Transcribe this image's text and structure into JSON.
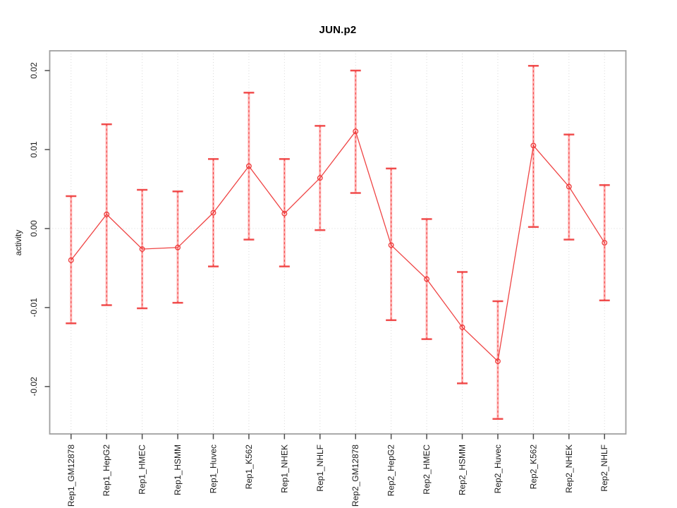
{
  "title": "JUN.p2",
  "chart_data": {
    "type": "line",
    "title": "JUN.p2",
    "subtitle": "",
    "xlabel": "",
    "ylabel": "activity",
    "legend_position": "none",
    "ylim": [
      -0.026,
      0.0225
    ],
    "ytick_values": [
      0.02,
      0.01,
      0.0,
      -0.01,
      -0.02
    ],
    "ytick_labels": [
      "0.02",
      "0.01",
      "0.00",
      "-0.01",
      "-0.02"
    ],
    "grid": {
      "vertical_dotted_per_category": true,
      "horizontal_dotted_at_zero": true
    },
    "marker": "open-circle",
    "error_bars": true,
    "categories": [
      "Rep1_GM12878",
      "Rep1_HepG2",
      "Rep1_HMEC",
      "Rep1_HSMM",
      "Rep1_Huvec",
      "Rep1_K562",
      "Rep1_NHEK",
      "Rep1_NHLF",
      "Rep2_GM12878",
      "Rep2_HepG2",
      "Rep2_HMEC",
      "Rep2_HSMM",
      "Rep2_Huvec",
      "Rep2_K562",
      "Rep2_NHEK",
      "Rep2_NHLF"
    ],
    "series": [
      {
        "name": "activity",
        "values": [
          -0.004,
          0.0018,
          -0.0026,
          -0.0024,
          0.002,
          0.0079,
          0.0019,
          0.0064,
          0.0123,
          -0.0021,
          -0.0064,
          -0.0125,
          -0.0168,
          0.0105,
          0.0053,
          -0.0018
        ],
        "lower": [
          -0.012,
          -0.0097,
          -0.0101,
          -0.0094,
          -0.0048,
          -0.0014,
          -0.0048,
          -0.0002,
          0.0045,
          -0.0116,
          -0.014,
          -0.0196,
          -0.0241,
          0.0002,
          -0.0014,
          -0.0091
        ],
        "upper": [
          0.0041,
          0.0132,
          0.0049,
          0.0047,
          0.0088,
          0.0172,
          0.0088,
          0.013,
          0.02,
          0.0076,
          0.0012,
          -0.0055,
          -0.0092,
          0.0206,
          0.0119,
          0.0055
        ]
      }
    ],
    "colors": {
      "series": "#ee3a3a",
      "error_stem": "#ffb0b0",
      "grid": "#d9d9d9",
      "frame": "#a0a0a0",
      "tick": "#4d4d4d",
      "label": "#1a1a1a",
      "background": "#ffffff"
    }
  }
}
